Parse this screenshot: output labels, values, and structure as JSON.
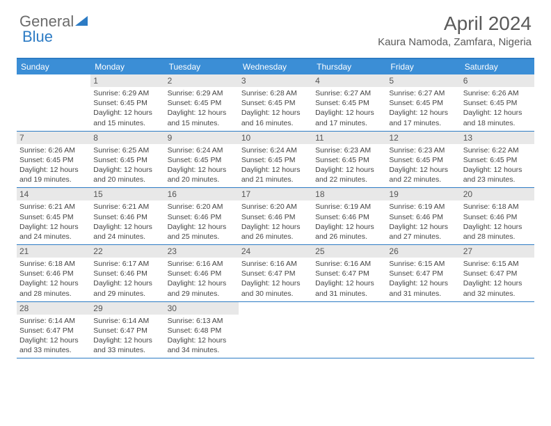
{
  "logo": {
    "text1": "General",
    "text2": "Blue"
  },
  "title": "April 2024",
  "location": "Kaura Namoda, Zamfara, Nigeria",
  "colors": {
    "header_bar": "#3b8ed6",
    "accent_line": "#2c7bc4",
    "daynum_bg": "#e8e8e8",
    "text": "#444444",
    "title_text": "#5a5a5a"
  },
  "weekdays": [
    "Sunday",
    "Monday",
    "Tuesday",
    "Wednesday",
    "Thursday",
    "Friday",
    "Saturday"
  ],
  "weeks": [
    [
      {
        "n": "",
        "sr": "",
        "ss": "",
        "dl": ""
      },
      {
        "n": "1",
        "sr": "6:29 AM",
        "ss": "6:45 PM",
        "dl": "12 hours and 15 minutes."
      },
      {
        "n": "2",
        "sr": "6:29 AM",
        "ss": "6:45 PM",
        "dl": "12 hours and 15 minutes."
      },
      {
        "n": "3",
        "sr": "6:28 AM",
        "ss": "6:45 PM",
        "dl": "12 hours and 16 minutes."
      },
      {
        "n": "4",
        "sr": "6:27 AM",
        "ss": "6:45 PM",
        "dl": "12 hours and 17 minutes."
      },
      {
        "n": "5",
        "sr": "6:27 AM",
        "ss": "6:45 PM",
        "dl": "12 hours and 17 minutes."
      },
      {
        "n": "6",
        "sr": "6:26 AM",
        "ss": "6:45 PM",
        "dl": "12 hours and 18 minutes."
      }
    ],
    [
      {
        "n": "7",
        "sr": "6:26 AM",
        "ss": "6:45 PM",
        "dl": "12 hours and 19 minutes."
      },
      {
        "n": "8",
        "sr": "6:25 AM",
        "ss": "6:45 PM",
        "dl": "12 hours and 20 minutes."
      },
      {
        "n": "9",
        "sr": "6:24 AM",
        "ss": "6:45 PM",
        "dl": "12 hours and 20 minutes."
      },
      {
        "n": "10",
        "sr": "6:24 AM",
        "ss": "6:45 PM",
        "dl": "12 hours and 21 minutes."
      },
      {
        "n": "11",
        "sr": "6:23 AM",
        "ss": "6:45 PM",
        "dl": "12 hours and 22 minutes."
      },
      {
        "n": "12",
        "sr": "6:23 AM",
        "ss": "6:45 PM",
        "dl": "12 hours and 22 minutes."
      },
      {
        "n": "13",
        "sr": "6:22 AM",
        "ss": "6:45 PM",
        "dl": "12 hours and 23 minutes."
      }
    ],
    [
      {
        "n": "14",
        "sr": "6:21 AM",
        "ss": "6:45 PM",
        "dl": "12 hours and 24 minutes."
      },
      {
        "n": "15",
        "sr": "6:21 AM",
        "ss": "6:46 PM",
        "dl": "12 hours and 24 minutes."
      },
      {
        "n": "16",
        "sr": "6:20 AM",
        "ss": "6:46 PM",
        "dl": "12 hours and 25 minutes."
      },
      {
        "n": "17",
        "sr": "6:20 AM",
        "ss": "6:46 PM",
        "dl": "12 hours and 26 minutes."
      },
      {
        "n": "18",
        "sr": "6:19 AM",
        "ss": "6:46 PM",
        "dl": "12 hours and 26 minutes."
      },
      {
        "n": "19",
        "sr": "6:19 AM",
        "ss": "6:46 PM",
        "dl": "12 hours and 27 minutes."
      },
      {
        "n": "20",
        "sr": "6:18 AM",
        "ss": "6:46 PM",
        "dl": "12 hours and 28 minutes."
      }
    ],
    [
      {
        "n": "21",
        "sr": "6:18 AM",
        "ss": "6:46 PM",
        "dl": "12 hours and 28 minutes."
      },
      {
        "n": "22",
        "sr": "6:17 AM",
        "ss": "6:46 PM",
        "dl": "12 hours and 29 minutes."
      },
      {
        "n": "23",
        "sr": "6:16 AM",
        "ss": "6:46 PM",
        "dl": "12 hours and 29 minutes."
      },
      {
        "n": "24",
        "sr": "6:16 AM",
        "ss": "6:47 PM",
        "dl": "12 hours and 30 minutes."
      },
      {
        "n": "25",
        "sr": "6:16 AM",
        "ss": "6:47 PM",
        "dl": "12 hours and 31 minutes."
      },
      {
        "n": "26",
        "sr": "6:15 AM",
        "ss": "6:47 PM",
        "dl": "12 hours and 31 minutes."
      },
      {
        "n": "27",
        "sr": "6:15 AM",
        "ss": "6:47 PM",
        "dl": "12 hours and 32 minutes."
      }
    ],
    [
      {
        "n": "28",
        "sr": "6:14 AM",
        "ss": "6:47 PM",
        "dl": "12 hours and 33 minutes."
      },
      {
        "n": "29",
        "sr": "6:14 AM",
        "ss": "6:47 PM",
        "dl": "12 hours and 33 minutes."
      },
      {
        "n": "30",
        "sr": "6:13 AM",
        "ss": "6:48 PM",
        "dl": "12 hours and 34 minutes."
      },
      {
        "n": "",
        "sr": "",
        "ss": "",
        "dl": ""
      },
      {
        "n": "",
        "sr": "",
        "ss": "",
        "dl": ""
      },
      {
        "n": "",
        "sr": "",
        "ss": "",
        "dl": ""
      },
      {
        "n": "",
        "sr": "",
        "ss": "",
        "dl": ""
      }
    ]
  ],
  "labels": {
    "sunrise": "Sunrise:",
    "sunset": "Sunset:",
    "daylight": "Daylight:"
  }
}
